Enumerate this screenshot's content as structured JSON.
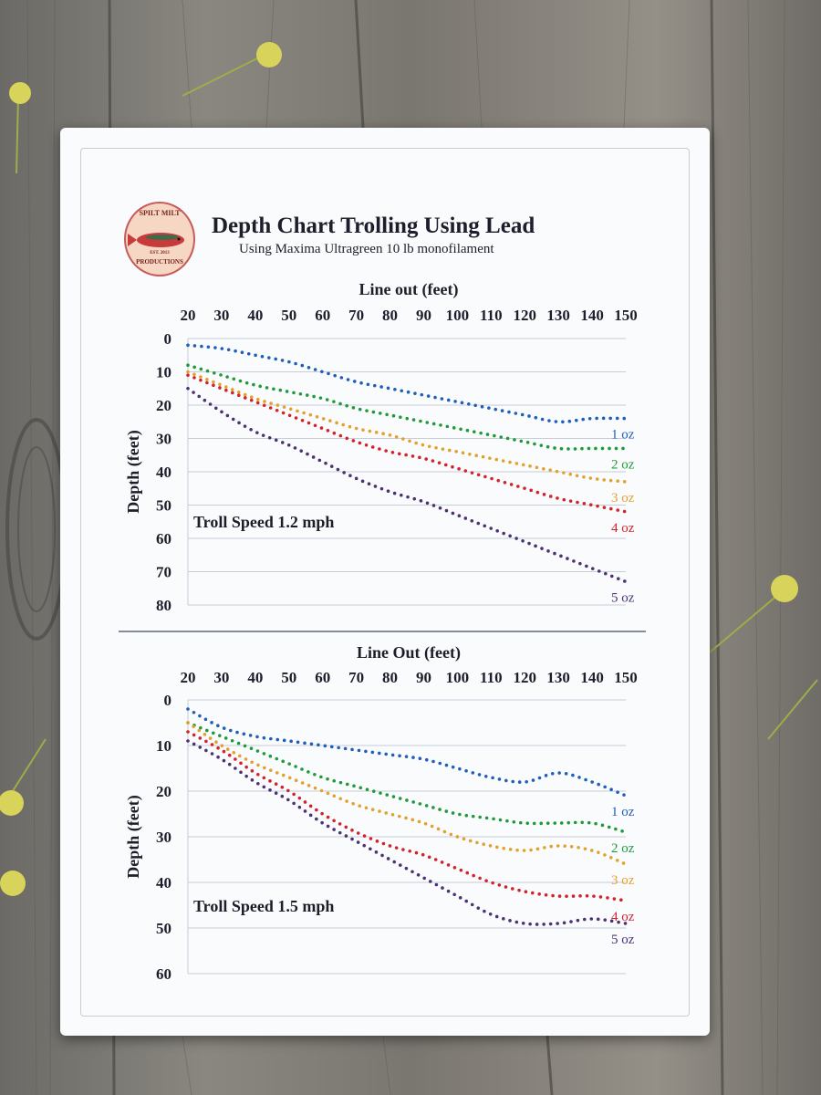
{
  "header": {
    "title": "Depth Chart Trolling Using Lead",
    "subtitle": "Using Maxima Ultragreen 10 lb monofilament",
    "logo_text": [
      "SPILT MILT",
      "EST. 2013",
      "PRODUCTIONS"
    ]
  },
  "colors": {
    "1 oz": "#1f5fb8",
    "2 oz": "#1f9a3b",
    "3 oz": "#e2a12f",
    "4 oz": "#d2222c",
    "5 oz": "#4a3275",
    "text": "#1d1d2b",
    "grid": "#c7ced8"
  },
  "chart_data": [
    {
      "type": "line",
      "title": "Troll Speed 1.2 mph",
      "xlabel": "Line out (feet)",
      "ylabel": "Depth (feet)",
      "x": [
        20,
        30,
        40,
        50,
        60,
        70,
        80,
        90,
        100,
        110,
        120,
        130,
        140,
        150
      ],
      "x_ticks": [
        20,
        30,
        40,
        50,
        60,
        70,
        80,
        90,
        100,
        110,
        120,
        130,
        140,
        150
      ],
      "y_ticks": [
        0,
        10,
        20,
        30,
        40,
        50,
        60,
        70,
        80
      ],
      "ylim": [
        0,
        80
      ],
      "y_inverted": true,
      "x_axis_position": "top",
      "grid": true,
      "series": [
        {
          "name": "1 oz",
          "values": [
            2,
            3,
            5,
            7,
            10,
            13,
            15,
            17,
            19,
            21,
            23,
            25,
            24,
            24
          ]
        },
        {
          "name": "2 oz",
          "values": [
            8,
            11,
            14,
            16,
            18,
            21,
            23,
            25,
            27,
            29,
            31,
            33,
            33,
            33
          ]
        },
        {
          "name": "3 oz",
          "values": [
            10,
            14,
            18,
            21,
            24,
            27,
            29,
            32,
            34,
            36,
            38,
            40,
            42,
            43
          ]
        },
        {
          "name": "4 oz",
          "values": [
            11,
            15,
            19,
            23,
            27,
            31,
            34,
            36,
            39,
            42,
            45,
            48,
            50,
            52
          ]
        },
        {
          "name": "5 oz",
          "values": [
            15,
            22,
            28,
            32,
            37,
            42,
            46,
            49,
            53,
            57,
            61,
            65,
            69,
            73
          ]
        }
      ]
    },
    {
      "type": "line",
      "title": "Troll Speed 1.5 mph",
      "xlabel": "Line Out (feet)",
      "ylabel": "Depth (feet)",
      "x": [
        20,
        30,
        40,
        50,
        60,
        70,
        80,
        90,
        100,
        110,
        120,
        130,
        140,
        150
      ],
      "x_ticks": [
        20,
        30,
        40,
        50,
        60,
        70,
        80,
        90,
        100,
        110,
        120,
        130,
        140,
        150
      ],
      "y_ticks": [
        0,
        10,
        20,
        30,
        40,
        50,
        60
      ],
      "ylim": [
        0,
        60
      ],
      "y_inverted": true,
      "x_axis_position": "top",
      "grid": true,
      "series": [
        {
          "name": "1 oz",
          "values": [
            2,
            6,
            8,
            9,
            10,
            11,
            12,
            13,
            15,
            17,
            18,
            16,
            18,
            21
          ]
        },
        {
          "name": "2 oz",
          "values": [
            5,
            8,
            11,
            14,
            17,
            19,
            21,
            23,
            25,
            26,
            27,
            27,
            27,
            29
          ]
        },
        {
          "name": "3 oz",
          "values": [
            5,
            10,
            14,
            17,
            20,
            23,
            25,
            27,
            30,
            32,
            33,
            32,
            33,
            36
          ]
        },
        {
          "name": "4 oz",
          "values": [
            7,
            11,
            16,
            20,
            25,
            29,
            32,
            34,
            37,
            40,
            42,
            43,
            43,
            44
          ]
        },
        {
          "name": "5 oz",
          "values": [
            9,
            13,
            18,
            22,
            27,
            31,
            35,
            39,
            43,
            47,
            49,
            49,
            48,
            49
          ]
        }
      ]
    }
  ]
}
